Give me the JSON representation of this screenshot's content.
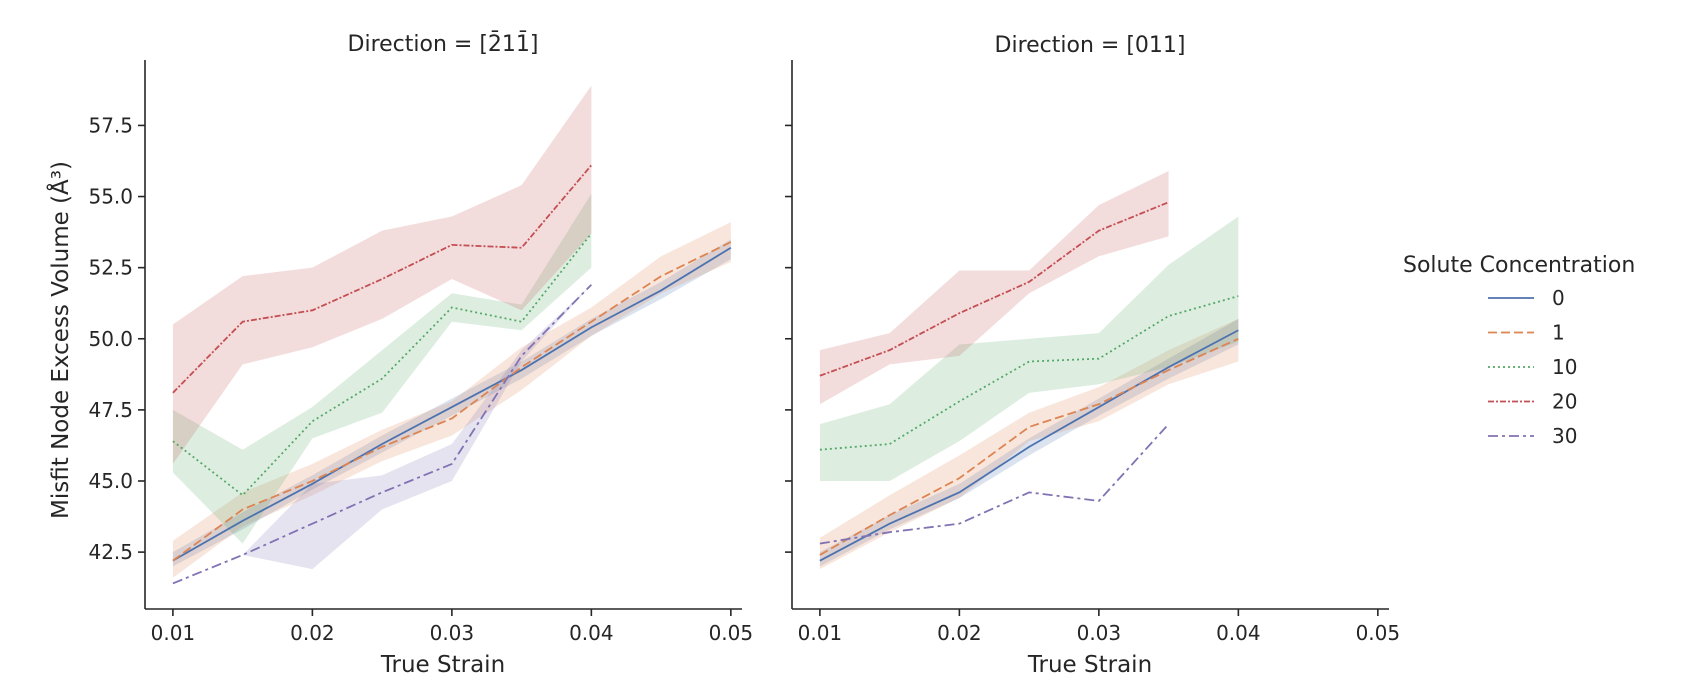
{
  "chart_data": {
    "type": "line",
    "ylabel": "Misfit Node Excess Volume (Å³)",
    "ylim": [
      40.5,
      59.8
    ],
    "yticks": [
      "42.5",
      "45.0",
      "47.5",
      "50.0",
      "52.5",
      "55.0",
      "57.5"
    ],
    "ytick_values": [
      42.5,
      45.0,
      47.5,
      50.0,
      52.5,
      55.0,
      57.5
    ],
    "grid": false,
    "legend": {
      "title": "Solute Concentration",
      "placement": "center-right",
      "entries": [
        {
          "label": "0",
          "color": "#4c72b0",
          "dash": "solid"
        },
        {
          "label": "1",
          "color": "#dd8452",
          "dash": "dashed"
        },
        {
          "label": "10",
          "color": "#55a868",
          "dash": "dotted"
        },
        {
          "label": "20",
          "color": "#c44e52",
          "dash": "dashdot-dense"
        },
        {
          "label": "30",
          "color": "#8172b3",
          "dash": "dashdot"
        }
      ]
    },
    "panels": [
      {
        "title": "Direction = [2̄11̄]",
        "xlabel": "True Strain",
        "xlim": [
          0.008,
          0.0508
        ],
        "xticks": [
          "0.01",
          "0.02",
          "0.03",
          "0.04",
          "0.05"
        ],
        "xtick_values": [
          0.01,
          0.02,
          0.03,
          0.04,
          0.05
        ],
        "series": [
          {
            "name": "0",
            "x": [
              0.01,
              0.015,
              0.02,
              0.025,
              0.03,
              0.035,
              0.04,
              0.045,
              0.05
            ],
            "y": [
              42.2,
              43.6,
              44.9,
              46.3,
              47.6,
              48.9,
              50.4,
              51.7,
              53.2
            ],
            "lower": [
              42.0,
              43.3,
              44.7,
              46.0,
              47.3,
              48.6,
              50.1,
              51.4,
              52.8
            ],
            "upper": [
              42.5,
              43.9,
              45.2,
              46.6,
              47.9,
              49.2,
              50.7,
              52.0,
              53.5
            ]
          },
          {
            "name": "1",
            "x": [
              0.01,
              0.015,
              0.02,
              0.025,
              0.03,
              0.035,
              0.04,
              0.045,
              0.05
            ],
            "y": [
              42.2,
              44.0,
              45.0,
              46.2,
              47.2,
              49.0,
              50.6,
              52.2,
              53.4
            ],
            "lower": [
              41.6,
              43.4,
              44.5,
              45.7,
              46.6,
              48.2,
              50.1,
              51.6,
              52.7
            ],
            "upper": [
              42.9,
              44.6,
              45.6,
              46.8,
              47.8,
              49.7,
              51.1,
              52.9,
              54.1
            ]
          },
          {
            "name": "10",
            "x": [
              0.01,
              0.015,
              0.02,
              0.025,
              0.03,
              0.035,
              0.04
            ],
            "y": [
              46.4,
              44.5,
              47.1,
              48.6,
              51.1,
              50.6,
              53.7
            ],
            "lower": [
              45.3,
              42.8,
              46.5,
              47.4,
              50.6,
              50.3,
              52.5
            ],
            "upper": [
              47.5,
              46.1,
              47.6,
              49.6,
              51.6,
              51.2,
              55.1
            ]
          },
          {
            "name": "20",
            "x": [
              0.01,
              0.015,
              0.02,
              0.025,
              0.03,
              0.035,
              0.04
            ],
            "y": [
              48.1,
              50.6,
              51.0,
              52.1,
              53.3,
              53.2,
              56.1
            ],
            "lower": [
              45.6,
              49.1,
              49.7,
              50.7,
              52.1,
              51.0,
              53.7
            ],
            "upper": [
              50.5,
              52.2,
              52.5,
              53.8,
              54.3,
              55.4,
              58.9
            ]
          },
          {
            "name": "30",
            "x": [
              0.01,
              0.015,
              0.02,
              0.025,
              0.03,
              0.035,
              0.04
            ],
            "y": [
              41.4,
              42.4,
              43.5,
              44.6,
              45.6,
              49.4,
              51.9
            ],
            "lower": [
              41.4,
              42.4,
              41.9,
              44.0,
              45.0,
              49.2,
              51.9
            ],
            "upper": [
              41.4,
              42.4,
              44.9,
              45.2,
              46.3,
              49.6,
              51.9
            ]
          }
        ]
      },
      {
        "title": "Direction = [011]",
        "xlabel": "True Strain",
        "xlim": [
          0.008,
          0.0508
        ],
        "xticks": [
          "0.01",
          "0.02",
          "0.03",
          "0.04",
          "0.05"
        ],
        "xtick_values": [
          0.01,
          0.02,
          0.03,
          0.04,
          0.05
        ],
        "series": [
          {
            "name": "0",
            "x": [
              0.01,
              0.015,
              0.02,
              0.025,
              0.03,
              0.035,
              0.04
            ],
            "y": [
              42.2,
              43.5,
              44.6,
              46.2,
              47.6,
              49.0,
              50.3
            ],
            "lower": [
              42.0,
              43.3,
              44.4,
              45.9,
              47.3,
              48.6,
              49.8
            ],
            "upper": [
              42.5,
              43.8,
              44.9,
              46.5,
              47.9,
              49.3,
              50.7
            ]
          },
          {
            "name": "1",
            "x": [
              0.01,
              0.015,
              0.02,
              0.025,
              0.03,
              0.035,
              0.04
            ],
            "y": [
              42.4,
              43.8,
              45.1,
              46.9,
              47.7,
              48.9,
              50.0
            ],
            "lower": [
              41.9,
              43.2,
              44.4,
              46.4,
              47.1,
              48.4,
              49.2
            ],
            "upper": [
              43.0,
              44.5,
              45.9,
              47.4,
              48.3,
              49.6,
              50.7
            ]
          },
          {
            "name": "10",
            "x": [
              0.01,
              0.015,
              0.02,
              0.025,
              0.03,
              0.035,
              0.04
            ],
            "y": [
              46.1,
              46.3,
              47.8,
              49.2,
              49.3,
              50.8,
              51.5
            ],
            "lower": [
              45.0,
              45.0,
              46.4,
              48.1,
              48.4,
              49.0,
              49.9
            ],
            "upper": [
              47.0,
              47.7,
              49.8,
              50.0,
              50.2,
              52.6,
              54.3
            ]
          },
          {
            "name": "20",
            "x": [
              0.01,
              0.015,
              0.02,
              0.025,
              0.03,
              0.035
            ],
            "y": [
              48.7,
              49.6,
              50.9,
              52.0,
              53.8,
              54.8
            ],
            "lower": [
              47.7,
              49.1,
              49.4,
              51.6,
              52.9,
              53.6
            ],
            "upper": [
              49.6,
              50.2,
              52.4,
              52.4,
              54.7,
              55.9
            ]
          },
          {
            "name": "30",
            "x": [
              0.01,
              0.015,
              0.02,
              0.025,
              0.03,
              0.035
            ],
            "y": [
              42.8,
              43.2,
              43.5,
              44.6,
              44.3,
              47.0
            ],
            "lower": [
              42.8,
              43.2,
              43.5,
              44.6,
              44.3,
              47.0
            ],
            "upper": [
              42.8,
              43.2,
              43.5,
              44.6,
              44.3,
              47.0
            ]
          }
        ]
      }
    ]
  }
}
